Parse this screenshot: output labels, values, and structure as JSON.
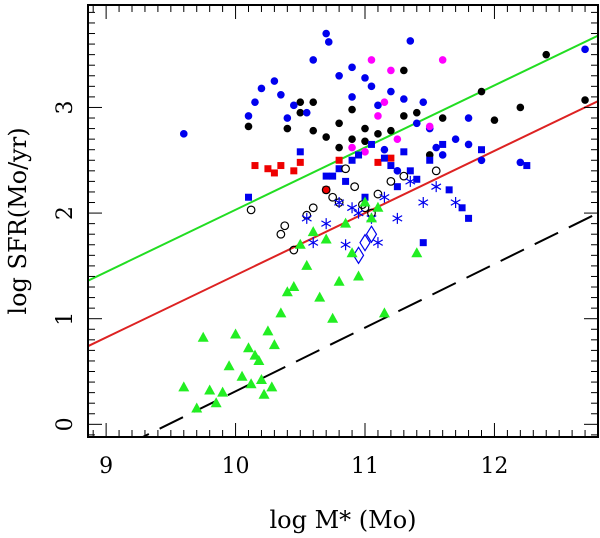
{
  "chart_data": {
    "type": "scatter",
    "title": "",
    "xlabel": "log M* (Mo)",
    "ylabel": "log SFR(Mo/yr)",
    "xlim": [
      8.86,
      12.8
    ],
    "ylim": [
      -0.12,
      3.97
    ],
    "xticks": [
      9,
      10,
      11,
      12
    ],
    "yticks": [
      0,
      1,
      2,
      3
    ],
    "xtick_labels": [
      "9",
      "10",
      "11",
      "12"
    ],
    "ytick_labels": [
      "0",
      "1",
      "2",
      "3"
    ],
    "lines": [
      {
        "name": "green-fit",
        "color": "#22dd22",
        "style": "solid",
        "x": [
          8.86,
          12.8
        ],
        "y": [
          1.36,
          3.68
        ]
      },
      {
        "name": "red-fit",
        "color": "#dd2222",
        "style": "solid",
        "x": [
          8.86,
          12.8
        ],
        "y": [
          0.74,
          3.06
        ]
      },
      {
        "name": "dashed-fit",
        "color": "#000000",
        "style": "dashed",
        "x": [
          9.15,
          12.8
        ],
        "y": [
          -0.2,
          2.0
        ]
      }
    ],
    "series": [
      {
        "name": "black filled circles",
        "marker": "circle-filled",
        "color": "#000000",
        "x": [
          10.1,
          10.4,
          10.5,
          10.6,
          10.7,
          10.8,
          10.9,
          11.0,
          11.1,
          11.2,
          11.3,
          10.6,
          10.9,
          11.3,
          11.6,
          11.9,
          12.0,
          12.2,
          12.4,
          12.7,
          11.5,
          10.8,
          11.0,
          11.4,
          10.5
        ],
        "y": [
          2.82,
          2.8,
          2.95,
          2.78,
          2.72,
          2.85,
          2.7,
          2.8,
          2.75,
          2.78,
          3.35,
          3.05,
          2.98,
          2.92,
          2.9,
          3.15,
          2.88,
          3.0,
          3.5,
          3.07,
          2.55,
          2.62,
          2.68,
          2.95,
          3.05
        ]
      },
      {
        "name": "blue filled circles",
        "marker": "circle-filled",
        "color": "#0000ee",
        "x": [
          9.6,
          10.1,
          10.15,
          10.2,
          10.3,
          10.4,
          10.45,
          10.55,
          10.6,
          10.7,
          10.72,
          10.8,
          10.9,
          11.0,
          11.05,
          11.1,
          11.2,
          11.3,
          11.35,
          11.4,
          11.45,
          11.5,
          11.6,
          11.7,
          11.8,
          11.9,
          12.2,
          12.7,
          10.9,
          11.15,
          11.25,
          10.35,
          11.55,
          11.8
        ],
        "y": [
          2.75,
          2.92,
          3.05,
          3.18,
          3.25,
          2.9,
          3.02,
          2.95,
          3.45,
          3.7,
          3.62,
          3.3,
          3.1,
          3.28,
          3.2,
          3.02,
          3.15,
          3.08,
          3.63,
          2.85,
          3.05,
          2.8,
          2.55,
          2.7,
          2.65,
          2.5,
          2.48,
          3.55,
          3.38,
          2.6,
          2.4,
          3.12,
          2.62,
          2.9
        ]
      },
      {
        "name": "magenta filled circles",
        "marker": "circle-filled",
        "color": "#ff00ff",
        "x": [
          10.9,
          11.0,
          11.05,
          11.1,
          11.15,
          11.2,
          11.25,
          11.5,
          11.6
        ],
        "y": [
          2.62,
          2.58,
          3.45,
          2.92,
          3.05,
          3.35,
          2.7,
          2.82,
          3.45
        ]
      },
      {
        "name": "red filled squares",
        "marker": "square-filled",
        "color": "#ee0000",
        "x": [
          10.15,
          10.25,
          10.3,
          10.35,
          10.45,
          10.5,
          10.7,
          10.8,
          10.95,
          11.1,
          11.2
        ],
        "y": [
          2.45,
          2.42,
          2.38,
          2.45,
          2.4,
          2.48,
          2.22,
          2.5,
          2.55,
          2.48,
          2.52
        ]
      },
      {
        "name": "blue filled squares",
        "marker": "square-filled",
        "color": "#0000ee",
        "x": [
          10.1,
          10.5,
          10.7,
          10.8,
          10.85,
          10.95,
          11.05,
          11.15,
          11.2,
          11.3,
          11.35,
          11.4,
          11.5,
          11.65,
          11.75,
          11.9,
          12.25,
          10.9,
          11.25,
          11.6,
          11.8,
          11.45,
          10.75,
          11.0
        ],
        "y": [
          2.15,
          2.58,
          2.35,
          2.42,
          2.3,
          2.55,
          2.65,
          2.52,
          2.45,
          2.58,
          2.4,
          2.32,
          2.5,
          2.22,
          2.05,
          2.6,
          2.45,
          2.5,
          2.25,
          2.65,
          1.95,
          1.72,
          2.35,
          2.15
        ]
      },
      {
        "name": "black open circles",
        "marker": "circle-open",
        "color": "#000000",
        "x": [
          10.12,
          10.38,
          10.45,
          10.6,
          10.7,
          10.8,
          10.85,
          10.92,
          11.0,
          11.05,
          11.1,
          11.3,
          11.55,
          10.35,
          10.55,
          10.75,
          10.98,
          11.2
        ],
        "y": [
          2.03,
          1.88,
          1.65,
          2.05,
          2.22,
          2.1,
          2.42,
          2.25,
          2.05,
          2.0,
          2.18,
          2.35,
          2.4,
          1.8,
          1.98,
          2.15,
          2.08,
          2.3
        ]
      },
      {
        "name": "blue asterisks",
        "marker": "asterisk",
        "color": "#0000ee",
        "x": [
          10.55,
          10.7,
          10.8,
          10.85,
          10.9,
          10.95,
          11.05,
          11.15,
          11.25,
          11.35,
          11.45,
          11.55,
          11.7,
          10.6,
          11.1
        ],
        "y": [
          1.95,
          1.9,
          2.1,
          1.7,
          2.05,
          2.0,
          1.95,
          2.15,
          1.95,
          2.3,
          2.1,
          2.25,
          2.1,
          1.72,
          1.72
        ]
      },
      {
        "name": "blue open diamonds",
        "marker": "diamond-open",
        "color": "#0000ee",
        "x": [
          10.95,
          11.0,
          11.05
        ],
        "y": [
          1.6,
          1.72,
          1.8
        ]
      },
      {
        "name": "green triangles",
        "marker": "triangle-filled",
        "color": "#22ee22",
        "x": [
          9.6,
          9.7,
          9.75,
          9.8,
          9.9,
          9.95,
          10.0,
          10.05,
          10.1,
          10.12,
          10.15,
          10.2,
          10.22,
          10.25,
          10.3,
          10.35,
          10.4,
          10.45,
          10.5,
          10.55,
          10.6,
          10.65,
          10.7,
          10.75,
          10.8,
          10.85,
          10.9,
          10.95,
          11.0,
          11.05,
          11.1,
          11.15,
          11.4,
          9.85,
          10.18,
          10.28
        ],
        "y": [
          0.35,
          0.15,
          0.82,
          0.32,
          0.3,
          0.55,
          0.85,
          0.45,
          0.72,
          0.38,
          0.65,
          0.42,
          0.28,
          0.88,
          0.75,
          1.05,
          1.25,
          1.3,
          1.7,
          1.5,
          1.82,
          1.2,
          1.75,
          1.0,
          1.35,
          1.9,
          1.62,
          1.4,
          2.1,
          1.95,
          2.05,
          1.05,
          1.62,
          0.2,
          0.6,
          0.35
        ]
      }
    ]
  }
}
